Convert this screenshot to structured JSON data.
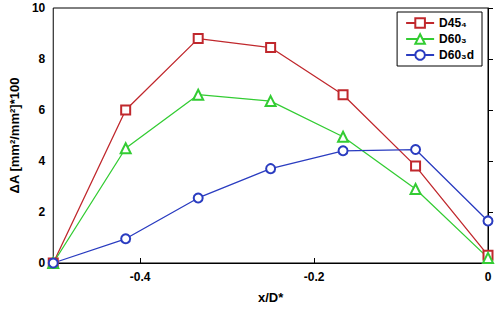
{
  "chart_data": {
    "type": "line",
    "x_label": "x/D*",
    "y_label": "ΔA [mm²/mm²]*100",
    "x": [
      -0.5,
      -0.4167,
      -0.3333,
      -0.25,
      -0.1667,
      -0.0833,
      0
    ],
    "series": [
      {
        "name": "D45₄",
        "color": "#c0282d",
        "marker": "square",
        "values": [
          0,
          6.0,
          8.8,
          8.45,
          6.6,
          3.8,
          0.3
        ]
      },
      {
        "name": "D60₃",
        "color": "#33cc33",
        "marker": "triangle",
        "values": [
          0,
          4.5,
          6.6,
          6.35,
          4.95,
          2.9,
          0.2
        ]
      },
      {
        "name": "D60₃d",
        "color": "#2a3cc0",
        "marker": "circle",
        "values": [
          0,
          0.95,
          2.55,
          3.7,
          4.4,
          4.45,
          1.65
        ]
      }
    ],
    "xlim": [
      -0.5,
      0
    ],
    "xticks": [
      -0.4,
      -0.2,
      0
    ],
    "ylim": [
      0,
      10
    ],
    "yticks": [
      0,
      2,
      4,
      6,
      8,
      10
    ],
    "grid": false,
    "legend": "upper right"
  }
}
